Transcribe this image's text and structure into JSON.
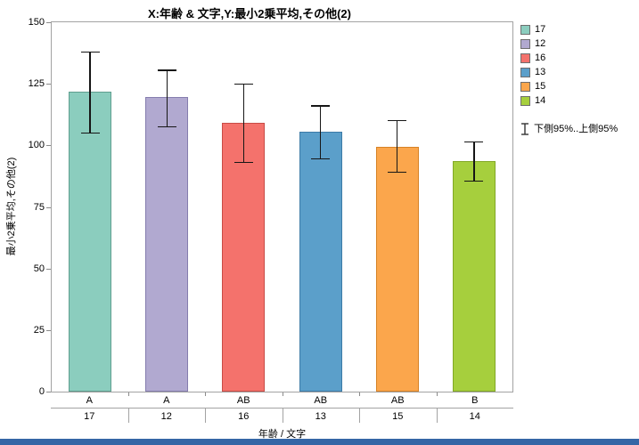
{
  "window": {
    "bottom_bar_color": "#3566a6"
  },
  "chart_data": {
    "type": "bar",
    "title": "X:年齢 & 文字,Y:最小2乗平均,その他(2)",
    "xlabel": "年齢 / 文字",
    "ylabel": "最小2乗平均,その他(2)",
    "ylim": [
      0,
      150
    ],
    "yticks": [
      0,
      25,
      50,
      75,
      100,
      125,
      150
    ],
    "grid": "off",
    "legend_position": "right",
    "categories_letter": [
      "A",
      "A",
      "AB",
      "AB",
      "AB",
      "B"
    ],
    "categories_age": [
      "17",
      "12",
      "16",
      "13",
      "15",
      "14"
    ],
    "values": [
      122,
      119.5,
      109,
      105.5,
      99.5,
      93.5
    ],
    "error_low": [
      105,
      107.5,
      93,
      94.5,
      89,
      85.5
    ],
    "error_high": [
      138,
      130.5,
      125,
      116,
      110,
      101.5
    ],
    "bar_colors": [
      "#8BCDBE",
      "#B1A9D0",
      "#F4726C",
      "#5B9FCA",
      "#FBA64C",
      "#A6CF3D"
    ],
    "bar_border_colors": [
      "#5f9e8f",
      "#857dae",
      "#c84c46",
      "#3d7ba7",
      "#d68226",
      "#82a826"
    ],
    "error_bar_color": "#161616",
    "legend": {
      "items": [
        {
          "label": "17",
          "color": "#8BCDBE"
        },
        {
          "label": "12",
          "color": "#B1A9D0"
        },
        {
          "label": "16",
          "color": "#F4726C"
        },
        {
          "label": "13",
          "color": "#5B9FCA"
        },
        {
          "label": "15",
          "color": "#FBA64C"
        },
        {
          "label": "14",
          "color": "#A6CF3D"
        }
      ],
      "error_label": "下側95%..上側95%"
    }
  }
}
